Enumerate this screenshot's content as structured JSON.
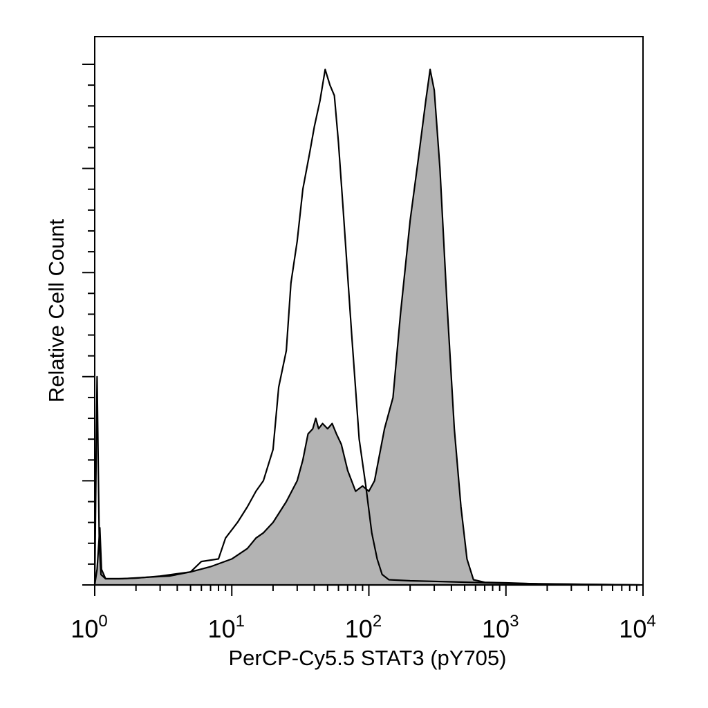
{
  "chart_data": {
    "type": "area",
    "xlabel": "PerCP-Cy5.5 STAT3 (pY705)",
    "ylabel": "Relative Cell Count",
    "xscale": "log",
    "xlim": [
      1,
      10000
    ],
    "ylim": [
      0,
      1.0
    ],
    "x_tick_labels": [
      {
        "base": "10",
        "exp": "0"
      },
      {
        "base": "10",
        "exp": "1"
      },
      {
        "base": "10",
        "exp": "2"
      },
      {
        "base": "10",
        "exp": "3"
      },
      {
        "base": "10",
        "exp": "4"
      }
    ],
    "x_tick_values": [
      1,
      10,
      100,
      1000,
      10000
    ],
    "grid": false,
    "series": [
      {
        "style": "filled",
        "fill": "#b3b3b3",
        "stroke": "#000000",
        "points": [
          [
            1.0,
            0.0
          ],
          [
            1.04,
            0.03
          ],
          [
            1.09,
            0.11
          ],
          [
            1.12,
            0.03
          ],
          [
            1.2,
            0.012
          ],
          [
            1.5,
            0.012
          ],
          [
            2.0,
            0.013
          ],
          [
            3.0,
            0.017
          ],
          [
            5.0,
            0.025
          ],
          [
            7.0,
            0.035
          ],
          [
            10.0,
            0.05
          ],
          [
            13.0,
            0.07
          ],
          [
            15.0,
            0.09
          ],
          [
            17.0,
            0.1
          ],
          [
            20.0,
            0.12
          ],
          [
            25.0,
            0.16
          ],
          [
            30.0,
            0.2
          ],
          [
            33.0,
            0.24
          ],
          [
            36.0,
            0.29
          ],
          [
            39.0,
            0.3
          ],
          [
            41.0,
            0.32
          ],
          [
            43.0,
            0.3
          ],
          [
            46.0,
            0.31
          ],
          [
            50.0,
            0.3
          ],
          [
            54.0,
            0.31
          ],
          [
            58.0,
            0.29
          ],
          [
            63.0,
            0.27
          ],
          [
            70.0,
            0.22
          ],
          [
            80.0,
            0.18
          ],
          [
            90.0,
            0.19
          ],
          [
            100.0,
            0.18
          ],
          [
            110.0,
            0.2
          ],
          [
            130.0,
            0.3
          ],
          [
            150.0,
            0.36
          ],
          [
            170.0,
            0.52
          ],
          [
            200.0,
            0.7
          ],
          [
            230.0,
            0.82
          ],
          [
            260.0,
            0.93
          ],
          [
            280.0,
            0.99
          ],
          [
            300.0,
            0.95
          ],
          [
            330.0,
            0.8
          ],
          [
            370.0,
            0.55
          ],
          [
            420.0,
            0.3
          ],
          [
            470.0,
            0.15
          ],
          [
            520.0,
            0.05
          ],
          [
            580.0,
            0.01
          ],
          [
            700.0,
            0.005
          ],
          [
            1000.0,
            0.004
          ],
          [
            1700.0,
            0.002
          ],
          [
            9500.0,
            0.0
          ]
        ]
      },
      {
        "style": "outline",
        "fill": "none",
        "stroke": "#000000",
        "points": [
          [
            1.0,
            0.0
          ],
          [
            1.04,
            0.4
          ],
          [
            1.08,
            0.08
          ],
          [
            1.11,
            0.02
          ],
          [
            1.2,
            0.012
          ],
          [
            1.6,
            0.012
          ],
          [
            2.5,
            0.015
          ],
          [
            3.5,
            0.017
          ],
          [
            5.0,
            0.025
          ],
          [
            6.0,
            0.045
          ],
          [
            8.0,
            0.05
          ],
          [
            9.0,
            0.09
          ],
          [
            11.0,
            0.12
          ],
          [
            13.0,
            0.15
          ],
          [
            15.0,
            0.18
          ],
          [
            17.0,
            0.2
          ],
          [
            20.0,
            0.26
          ],
          [
            22.0,
            0.38
          ],
          [
            25.0,
            0.45
          ],
          [
            27.0,
            0.58
          ],
          [
            30.0,
            0.66
          ],
          [
            33.0,
            0.76
          ],
          [
            37.0,
            0.83
          ],
          [
            40.0,
            0.88
          ],
          [
            44.0,
            0.93
          ],
          [
            48.0,
            0.99
          ],
          [
            52.0,
            0.96
          ],
          [
            56.0,
            0.94
          ],
          [
            60.0,
            0.85
          ],
          [
            65.0,
            0.72
          ],
          [
            75.0,
            0.48
          ],
          [
            85.0,
            0.28
          ],
          [
            95.0,
            0.19
          ],
          [
            105.0,
            0.1
          ],
          [
            115.0,
            0.05
          ],
          [
            125.0,
            0.02
          ],
          [
            140.0,
            0.01
          ],
          [
            200.0,
            0.008
          ],
          [
            400.0,
            0.006
          ],
          [
            1000.0,
            0.003
          ],
          [
            9500.0,
            0.0
          ]
        ]
      }
    ]
  }
}
